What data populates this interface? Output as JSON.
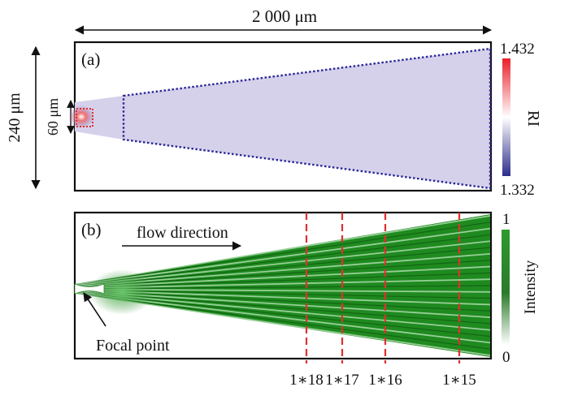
{
  "top_dimension_label": "2 000 μm",
  "side_dimension_label": "240 μm",
  "inner_dimension_label": "60 μm",
  "panel_a": {
    "label": "(a)",
    "colorbar": {
      "title": "RI",
      "max_label": "1.432",
      "min_label": "1.332",
      "color_high": "#e8212b",
      "color_mid": "#ffffff",
      "color_low": "#2c2c8c"
    },
    "fill_color": "#d6d1ea",
    "outline_color": "#2a2a9a",
    "focus_box_color": "#e03030"
  },
  "panel_b": {
    "label": "(b)",
    "flow_label": "flow direction",
    "focal_label": "Focal point",
    "colorbar": {
      "title": "Intensity",
      "max_label": "1",
      "min_label": "0",
      "color_high": "#2e9a2e",
      "color_low": "#ffffff"
    },
    "beam_color": "#1f8a1f",
    "marker_color": "#e03030",
    "markers": [
      "1∗18",
      "1∗17",
      "1∗16",
      "1∗15"
    ]
  }
}
